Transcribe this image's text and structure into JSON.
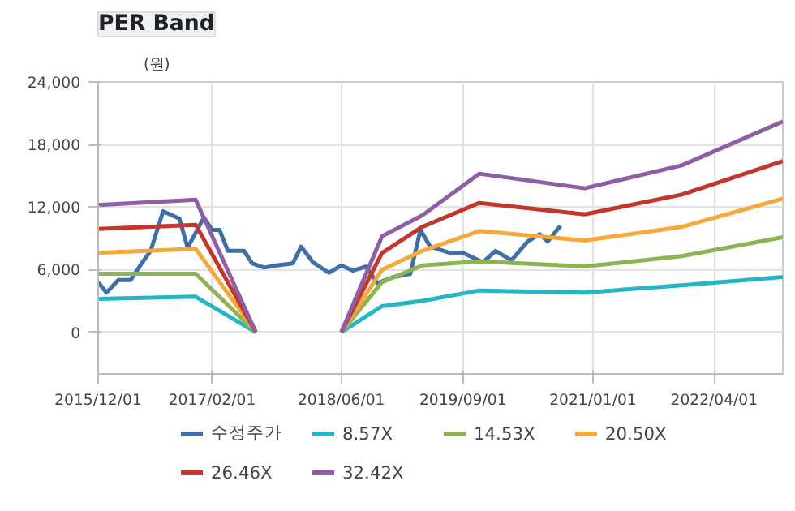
{
  "chart_data": {
    "type": "line",
    "title": "PER Band",
    "ylabel": "(원)",
    "xlim": [
      "2015-12-01",
      "2022-12-15"
    ],
    "ylim": [
      -4000,
      24000
    ],
    "xticks": [
      {
        "value": "2015-12-01",
        "label": "2015/12/01"
      },
      {
        "value": "2017-02-01",
        "label": "2017/02/01"
      },
      {
        "value": "2018-06-01",
        "label": "2018/06/01"
      },
      {
        "value": "2019-09-01",
        "label": "2019/09/01"
      },
      {
        "value": "2021-01-01",
        "label": "2021/01/01"
      },
      {
        "value": "2022-04-01",
        "label": "2022/04/01"
      }
    ],
    "yticks": [
      {
        "value": 0,
        "label": "0"
      },
      {
        "value": 6000,
        "label": "6,000"
      },
      {
        "value": 12000,
        "label": "12,000"
      },
      {
        "value": 18000,
        "label": "18,000"
      },
      {
        "value": 24000,
        "label": "24,000"
      }
    ],
    "grid": true,
    "legend": "bottom",
    "marker": "none",
    "line_style": "solid",
    "series": [
      {
        "name": "수정주가",
        "color": "#3d6fa8",
        "x": [
          "2015-12-01",
          "2016-01-01",
          "2016-02-15",
          "2016-04-01",
          "2016-05-15",
          "2016-06-15",
          "2016-08-01",
          "2016-10-01",
          "2016-11-01",
          "2017-01-01",
          "2017-02-01",
          "2017-03-01",
          "2017-04-01",
          "2017-06-01",
          "2017-07-01",
          "2017-08-15",
          "2017-10-01",
          "2017-12-01",
          "2018-01-01",
          "2018-02-15",
          "2018-04-15",
          "2018-06-01",
          "2018-07-15",
          "2018-09-01",
          "2018-10-15",
          "2018-12-15",
          "2019-02-15",
          "2019-03-25",
          "2019-05-01",
          "2019-07-15",
          "2019-09-01",
          "2019-11-15",
          "2020-01-01",
          "2020-03-01",
          "2020-05-01",
          "2020-06-15",
          "2020-07-15",
          "2020-09-01"
        ],
        "values": [
          4800,
          3800,
          5000,
          5000,
          6700,
          7800,
          11600,
          10900,
          8100,
          11000,
          9800,
          9800,
          7800,
          7800,
          6600,
          6200,
          6400,
          6600,
          8200,
          6700,
          5700,
          6400,
          5900,
          6300,
          4700,
          5300,
          5600,
          9800,
          8200,
          7600,
          7600,
          6700,
          7800,
          6900,
          8700,
          9400,
          8700,
          10200
        ]
      },
      {
        "name": "8.57X",
        "color": "#25b5c4",
        "x": [
          "2015-12-01",
          "2016-12-01",
          "2017-07-15",
          "2018-01-01",
          "2018-06-01",
          "2018-11-01",
          "2019-04-01",
          "2019-11-01",
          "2020-12-01",
          "2021-12-01",
          "2022-12-15"
        ],
        "values": [
          3200,
          3400,
          0,
          null,
          0,
          2500,
          3000,
          4000,
          3800,
          4500,
          5300
        ]
      },
      {
        "name": "14.53X",
        "color": "#8db452",
        "x": [
          "2015-12-01",
          "2016-12-01",
          "2017-07-15",
          "2018-01-01",
          "2018-06-01",
          "2018-11-01",
          "2019-04-01",
          "2019-11-01",
          "2020-12-01",
          "2021-12-01",
          "2022-12-15"
        ],
        "values": [
          5600,
          5600,
          0,
          null,
          0,
          4800,
          6400,
          6800,
          6300,
          7300,
          9100
        ]
      },
      {
        "name": "20.50X",
        "color": "#f5a93a",
        "x": [
          "2015-12-01",
          "2016-12-01",
          "2017-07-15",
          "2018-01-01",
          "2018-06-01",
          "2018-11-01",
          "2019-04-01",
          "2019-11-01",
          "2020-12-01",
          "2021-12-01",
          "2022-12-15"
        ],
        "values": [
          7600,
          8000,
          0,
          null,
          0,
          6000,
          7800,
          9700,
          8800,
          10100,
          12800
        ]
      },
      {
        "name": "26.46X",
        "color": "#c4352b",
        "x": [
          "2015-12-01",
          "2016-12-01",
          "2017-07-15",
          "2018-01-01",
          "2018-06-01",
          "2018-11-01",
          "2019-04-01",
          "2019-11-01",
          "2020-12-01",
          "2021-12-01",
          "2022-12-15"
        ],
        "values": [
          9900,
          10300,
          0,
          null,
          0,
          7600,
          10100,
          12400,
          11300,
          13200,
          16400
        ]
      },
      {
        "name": "32.42X",
        "color": "#8e5ea6",
        "x": [
          "2015-12-01",
          "2016-12-01",
          "2017-07-15",
          "2018-01-01",
          "2018-06-01",
          "2018-11-01",
          "2019-04-01",
          "2019-11-01",
          "2020-12-01",
          "2021-12-01",
          "2022-12-15"
        ],
        "values": [
          12200,
          12700,
          0,
          null,
          0,
          9200,
          11200,
          15200,
          13800,
          16000,
          20200
        ]
      }
    ]
  }
}
